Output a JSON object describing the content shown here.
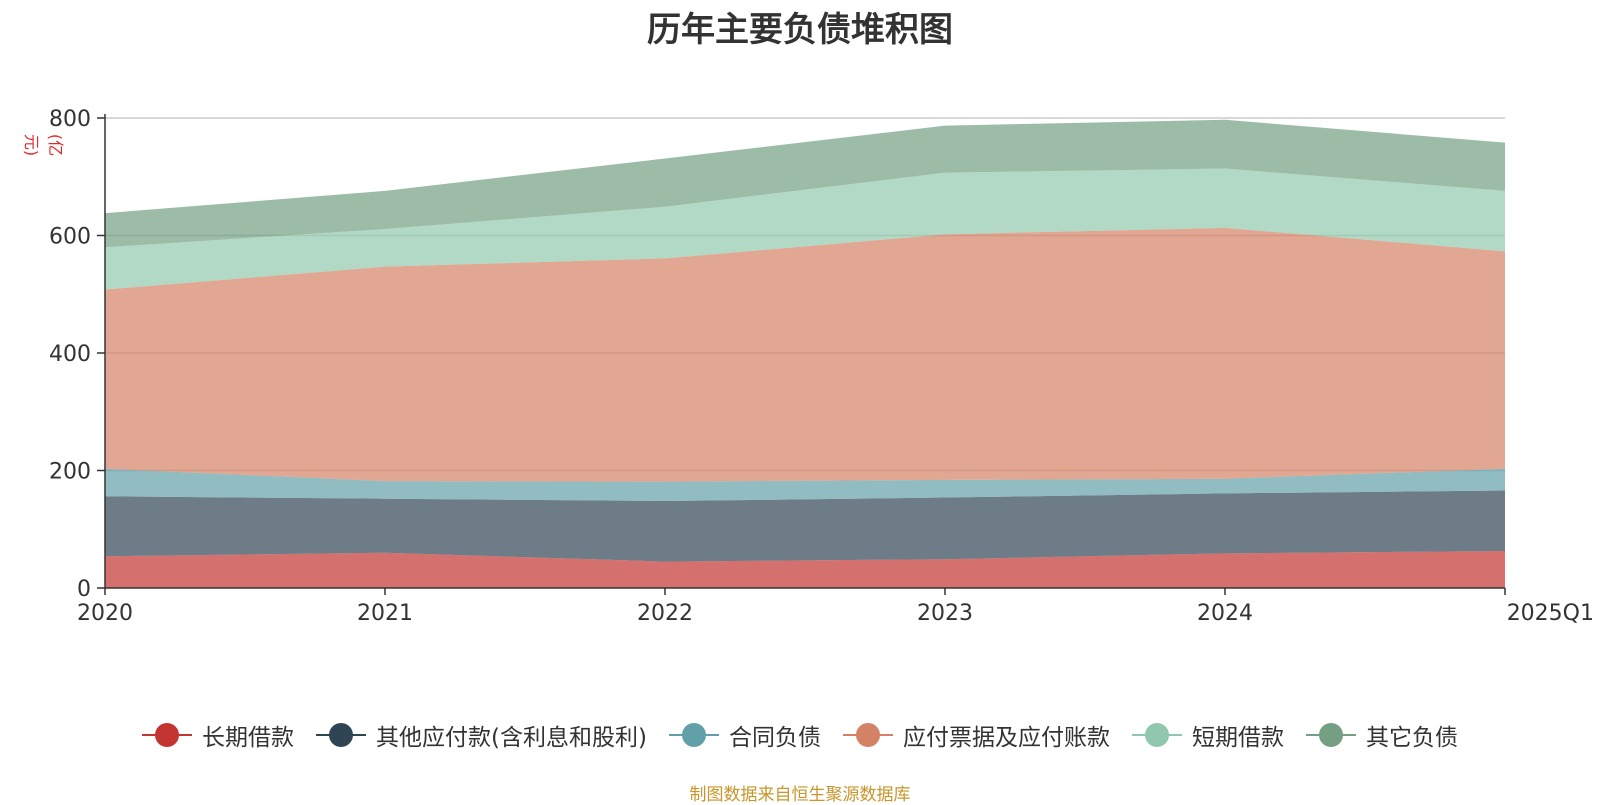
{
  "chart_data": {
    "type": "area",
    "stacked": true,
    "title": "历年主要负债堆积图",
    "ylabel": "(亿元)",
    "xlabel": "",
    "categories": [
      "2020",
      "2021",
      "2022",
      "2023",
      "2024",
      "2025Q1"
    ],
    "ylim": [
      0,
      800
    ],
    "yticks": [
      0,
      200,
      400,
      600,
      800
    ],
    "grid": true,
    "legend_position": "bottom",
    "series": [
      {
        "name": "长期借款",
        "color": "#c23531",
        "values": [
          54,
          60,
          45,
          49,
          59,
          63
        ]
      },
      {
        "name": "其他应付款(含利息和股利)",
        "color": "#2f4554",
        "values": [
          102,
          92,
          103,
          105,
          102,
          103
        ]
      },
      {
        "name": "合同负债",
        "color": "#61a0a8",
        "values": [
          47,
          30,
          33,
          30,
          25,
          37
        ]
      },
      {
        "name": "应付票据及应付账款",
        "color": "#d48265",
        "values": [
          305,
          365,
          380,
          418,
          427,
          370
        ]
      },
      {
        "name": "短期借款",
        "color": "#91c7ae",
        "values": [
          72,
          64,
          88,
          105,
          101,
          103
        ]
      },
      {
        "name": "其它负债",
        "color": "#749f83",
        "values": [
          58,
          65,
          82,
          80,
          83,
          82
        ]
      }
    ]
  },
  "source_text": "制图数据来自恒生聚源数据库"
}
